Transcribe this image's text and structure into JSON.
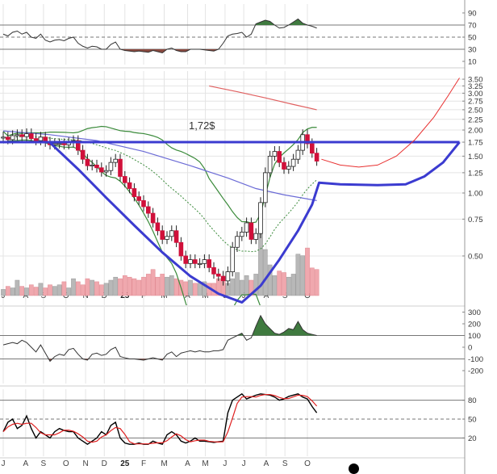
{
  "chart_data": {
    "type": "candlestick",
    "title": "",
    "annotation": "1,72$",
    "time_labels": [
      "J",
      "A",
      "S",
      "O",
      "N",
      "D",
      "25",
      "F",
      "M",
      "A",
      "M",
      "J",
      "J",
      "A",
      "S",
      "O"
    ],
    "time_label_weeks": [
      0,
      4.8,
      8.6,
      13.4,
      17.6,
      21.6,
      26,
      30,
      34.4,
      39.4,
      43.2,
      47.4,
      51.4,
      56.2,
      60.2,
      65
    ],
    "price_axis": {
      "scale": "log",
      "labels": [
        "3.50",
        "3.25",
        "3.00",
        "2.75",
        "2.50",
        "2.25",
        "2.00",
        "1.75",
        "1.50",
        "1.25",
        "1.00",
        "0.75",
        "0.50"
      ],
      "values": [
        3.5,
        3.25,
        3.0,
        2.75,
        2.5,
        2.25,
        2.0,
        1.75,
        1.5,
        1.25,
        1.0,
        0.75,
        0.5
      ]
    },
    "close": [
      1.85,
      1.8,
      1.88,
      1.9,
      1.86,
      1.92,
      1.82,
      1.78,
      1.85,
      1.75,
      1.7,
      1.72,
      1.72,
      1.7,
      1.74,
      1.78,
      1.6,
      1.45,
      1.35,
      1.36,
      1.32,
      1.26,
      1.28,
      1.4,
      1.45,
      1.2,
      1.12,
      1.05,
      0.96,
      0.92,
      0.86,
      0.8,
      0.72,
      0.66,
      0.6,
      0.62,
      0.66,
      0.58,
      0.5,
      0.46,
      0.48,
      0.46,
      0.46,
      0.48,
      0.44,
      0.41,
      0.4,
      0.38,
      0.42,
      0.55,
      0.62,
      0.65,
      0.72,
      0.6,
      0.64,
      0.9,
      1.25,
      1.5,
      1.58,
      1.4,
      1.3,
      1.34,
      1.45,
      1.6,
      1.9,
      1.72,
      1.55,
      1.42
    ],
    "volume": [
      8,
      12,
      10,
      20,
      12,
      10,
      14,
      11,
      16,
      10,
      14,
      12,
      14,
      18,
      10,
      22,
      18,
      14,
      22,
      20,
      18,
      14,
      16,
      20,
      24,
      22,
      26,
      24,
      22,
      20,
      24,
      28,
      34,
      24,
      28,
      24,
      26,
      22,
      20,
      18,
      20,
      16,
      16,
      18,
      16,
      16,
      22,
      18,
      16,
      22,
      30,
      20,
      26,
      20,
      28,
      80,
      60,
      40,
      26,
      32,
      30,
      24,
      28,
      54,
      52,
      62,
      36,
      34
    ],
    "ma_long": [
      [
        0,
        1.98
      ],
      [
        10,
        1.9
      ],
      [
        20,
        1.78
      ],
      [
        30,
        1.58
      ],
      [
        40,
        1.35
      ],
      [
        48,
        1.18
      ],
      [
        54,
        1.05
      ],
      [
        60,
        0.98
      ],
      [
        67,
        0.92
      ]
    ],
    "ma_200": [
      [
        44,
        3.25
      ],
      [
        50,
        3.05
      ],
      [
        56,
        2.85
      ],
      [
        62,
        2.65
      ],
      [
        67,
        2.5
      ]
    ],
    "bb_period": 20,
    "horizontal_line": 1.75,
    "cup_line": [
      [
        10,
        1.74
      ],
      [
        16,
        1.3
      ],
      [
        22,
        0.95
      ],
      [
        28,
        0.7
      ],
      [
        34,
        0.52
      ],
      [
        40,
        0.4
      ],
      [
        46,
        0.33
      ],
      [
        51,
        0.3
      ],
      [
        55,
        0.36
      ],
      [
        59,
        0.48
      ],
      [
        63,
        0.66
      ],
      [
        66,
        0.88
      ],
      [
        67.5,
        1.12
      ],
      [
        72,
        1.1
      ],
      [
        80,
        1.09
      ],
      [
        86,
        1.1
      ],
      [
        90,
        1.2
      ],
      [
        94,
        1.4
      ],
      [
        97.5,
        1.75
      ]
    ],
    "projection": [
      [
        68,
        1.45
      ],
      [
        72,
        1.36
      ],
      [
        76,
        1.33
      ],
      [
        80,
        1.36
      ],
      [
        84,
        1.5
      ],
      [
        88,
        1.8
      ],
      [
        92,
        2.3
      ],
      [
        95,
        2.9
      ],
      [
        97.5,
        3.55
      ]
    ],
    "rsi": {
      "labels": [
        "90",
        "70",
        "50",
        "30",
        "10"
      ],
      "values_axis": [
        90,
        70,
        50,
        30,
        10
      ],
      "levels": [
        70,
        50,
        30
      ],
      "values": [
        55,
        52,
        58,
        60,
        55,
        58,
        50,
        48,
        55,
        45,
        42,
        45,
        46,
        44,
        48,
        50,
        40,
        35,
        32,
        35,
        34,
        30,
        30,
        38,
        42,
        30,
        28,
        27,
        26,
        27,
        26,
        25,
        28,
        26,
        24,
        30,
        32,
        28,
        26,
        26,
        30,
        30,
        30,
        29,
        28,
        27,
        30,
        40,
        52,
        55,
        56,
        58,
        50,
        55,
        72,
        75,
        78,
        76,
        70,
        65,
        66,
        70,
        75,
        80,
        73,
        70,
        68,
        65
      ]
    },
    "cci": {
      "labels": [
        "300",
        "200",
        "100",
        "0",
        "-100",
        "-200"
      ],
      "values_axis": [
        300,
        200,
        100,
        0,
        -100,
        -200
      ],
      "levels": [
        100,
        -100
      ],
      "values": [
        20,
        30,
        40,
        30,
        60,
        40,
        0,
        -40,
        20,
        -50,
        -120,
        -80,
        -60,
        -70,
        -20,
        -10,
        -60,
        -100,
        -110,
        -60,
        -50,
        -70,
        -60,
        -20,
        0,
        -80,
        -90,
        -100,
        -100,
        -105,
        -110,
        -100,
        -90,
        -100,
        -110,
        -60,
        -40,
        -80,
        -50,
        -40,
        -30,
        -40,
        -30,
        -40,
        -40,
        -30,
        -30,
        -20,
        60,
        80,
        100,
        120,
        60,
        80,
        180,
        270,
        200,
        160,
        120,
        110,
        130,
        160,
        150,
        220,
        150,
        120,
        110,
        100
      ]
    },
    "stoch": {
      "labels": [
        "80",
        "50",
        "20"
      ],
      "values_axis": [
        80,
        50,
        20
      ],
      "levels": [
        80,
        50,
        20
      ],
      "d_period": 3,
      "k": [
        30,
        45,
        50,
        35,
        40,
        55,
        35,
        20,
        30,
        25,
        20,
        30,
        35,
        32,
        30,
        30,
        20,
        15,
        10,
        15,
        20,
        30,
        25,
        40,
        45,
        20,
        12,
        10,
        10,
        12,
        10,
        10,
        15,
        12,
        10,
        25,
        30,
        25,
        15,
        12,
        15,
        20,
        15,
        15,
        14,
        13,
        14,
        15,
        60,
        80,
        85,
        90,
        82,
        85,
        88,
        90,
        89,
        88,
        85,
        80,
        82,
        86,
        88,
        90,
        85,
        82,
        70,
        60
      ]
    },
    "colors": {
      "up": "#ffffff",
      "down": "#d0103a",
      "vol_up": "#b8b8b8",
      "vol_down": "#f0a8ae",
      "ma_long": "#6b6bd6",
      "ma_200": "#e06060",
      "bb": "#3a8a3a",
      "trend": "#3b3bd0",
      "projection": "#e83030",
      "pos_fill": "#3f7a3f",
      "neg_fill": "#8a4a40"
    }
  }
}
